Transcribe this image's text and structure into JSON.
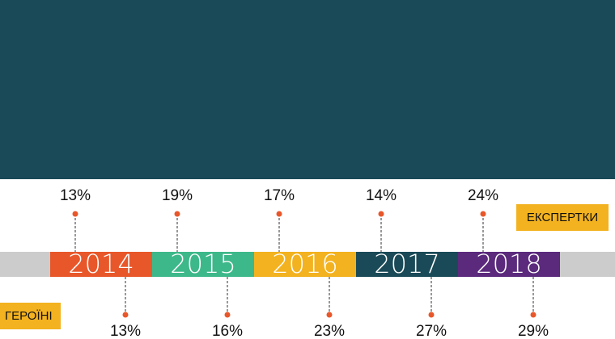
{
  "timeline": {
    "years": [
      "2014",
      "2015",
      "2016",
      "2017",
      "2018"
    ],
    "experts": {
      "label": "ЕКСПЕРТКИ",
      "values": [
        "13%",
        "19%",
        "17%",
        "14%",
        "24%"
      ]
    },
    "heroines": {
      "label": "ГЕРОЇНІ",
      "values": [
        "13%",
        "16%",
        "23%",
        "27%",
        "29%"
      ]
    }
  }
}
